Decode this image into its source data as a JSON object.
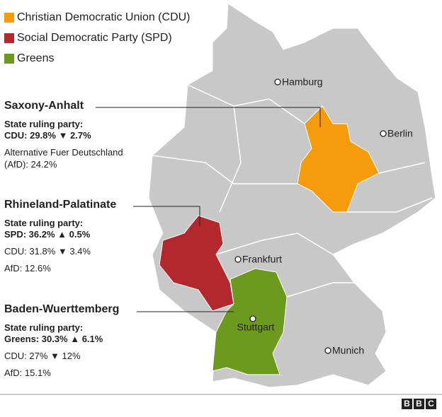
{
  "legend": [
    {
      "label": "Christian Democratic Union (CDU)",
      "color": "#f59b0c"
    },
    {
      "label": "Social Democratic Party (SPD)",
      "color": "#b3282d"
    },
    {
      "label": "Greens",
      "color": "#6b9a1e"
    }
  ],
  "cities": [
    "Hamburg",
    "Berlin",
    "Frankfurt",
    "Stuttgart",
    "Munich"
  ],
  "states": [
    {
      "name": "Saxony-Anhalt",
      "ruling_heading": "State ruling party:",
      "ruling": "CDU: 29.8% ▼ 2.7%",
      "others": [
        "Alternative Fuer Deutschland (AfD): 24.2%"
      ]
    },
    {
      "name": "Rhineland-Palatinate",
      "ruling_heading": "State ruling party:",
      "ruling": "SPD: 36.2% ▲ 0.5%",
      "others": [
        "CDU: 31.8% ▼ 3.4%",
        "AfD: 12.6%"
      ]
    },
    {
      "name": "Baden-Wuerttemberg",
      "ruling_heading": "State ruling party:",
      "ruling": "Greens: 30.3% ▲ 6.1%",
      "others": [
        "CDU: 27% ▼ 12%",
        "AfD: 15.1%"
      ]
    }
  ],
  "footer": {
    "logo": "BBC"
  }
}
